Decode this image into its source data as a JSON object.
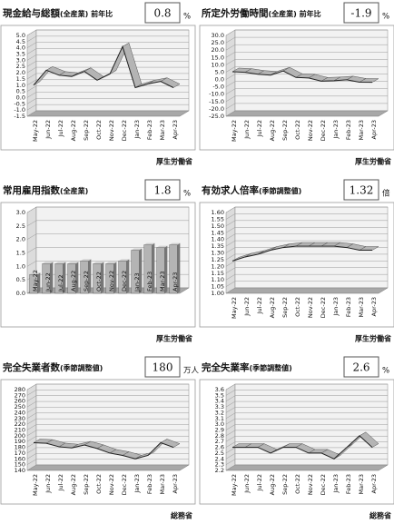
{
  "chart_data": [
    {
      "type": "line",
      "title": "現金給与総額",
      "subtitle": "(全産業) 前年比",
      "latest": 0.8,
      "unit": "%",
      "source": "厚生労働省",
      "color": "#b4b4b4",
      "categories": [
        "May-22",
        "Jun-22",
        "Jul-22",
        "Aug-22",
        "Sep-22",
        "Oct-22",
        "Nov-22",
        "Dec-22",
        "Jan-23",
        "Feb-23",
        "Mar-23",
        "Apr-23"
      ],
      "values": [
        1.0,
        2.2,
        1.8,
        1.7,
        2.1,
        1.4,
        1.9,
        4.1,
        0.8,
        1.1,
        1.3,
        0.8
      ],
      "ylim": [
        -1.5,
        5.0
      ],
      "yticks": [
        -1.5,
        {
          "value": -1,
          "label": "-1.0"
        },
        -0.5,
        {
          "value": 0,
          "label": "0.0"
        },
        0.5,
        {
          "value": 1,
          "label": "1.0"
        },
        1.5,
        {
          "value": 2,
          "label": "2.0"
        },
        2.5,
        {
          "value": 3,
          "label": "3.0"
        },
        3.5,
        {
          "value": 4,
          "label": "4.0"
        },
        4.5,
        {
          "value": 5,
          "label": "5.0"
        }
      ]
    },
    {
      "type": "line",
      "title": "所定外労働時間",
      "subtitle": "(全産業) 前年比",
      "latest": -1.9,
      "unit": "%",
      "source": "厚生労働省",
      "color": "#b4b4b4",
      "categories": [
        "May-22",
        "Jun-22",
        "Jul-22",
        "Aug-22",
        "Sep-22",
        "Oct-22",
        "Nov-22",
        "Dec-22",
        "Jan-23",
        "Feb-23",
        "Mar-23",
        "Apr-23"
      ],
      "values": [
        5.3,
        4.9,
        3.6,
        3.0,
        5.8,
        1.4,
        1.0,
        -1.1,
        -0.8,
        -0.2,
        -1.8,
        -1.9
      ],
      "ylim": [
        -25,
        30
      ],
      "yticks": [
        {
          "value": -25,
          "label": "-25.0"
        },
        {
          "value": -20,
          "label": "-20.0"
        },
        {
          "value": -15,
          "label": "-15.0"
        },
        {
          "value": -10,
          "label": "-10.0"
        },
        {
          "value": -5,
          "label": "-5.0"
        },
        {
          "value": 0,
          "label": "0.0"
        },
        {
          "value": 5,
          "label": "5.0"
        },
        {
          "value": 10,
          "label": "10.0"
        },
        {
          "value": 15,
          "label": "15.0"
        },
        {
          "value": 20,
          "label": "20.0"
        },
        {
          "value": 25,
          "label": "25.0"
        },
        {
          "value": 30,
          "label": "30.0"
        }
      ]
    },
    {
      "type": "bar",
      "title": "常用雇用指数",
      "subtitle": "(全産業)",
      "latest": 1.8,
      "unit": "%",
      "source": "厚生労働省",
      "color": "#b4b4b4",
      "categories": [
        "May-22",
        "Jun-22",
        "Jul-22",
        "Aug-22",
        "Sep-22",
        "Oct-22",
        "Nov-22",
        "Dec-22",
        "Jan-23",
        "Feb-23",
        "Mar-23",
        "Apr-23"
      ],
      "values": [
        0.7,
        1.1,
        1.1,
        1.1,
        1.2,
        1.1,
        1.1,
        1.2,
        1.6,
        1.8,
        1.7,
        1.8
      ],
      "ylim": [
        0,
        3.0
      ],
      "yticks": [
        {
          "value": 0,
          "label": "0.0"
        },
        0.5,
        {
          "value": 1,
          "label": "1.0"
        },
        1.5,
        {
          "value": 2,
          "label": "2.0"
        },
        2.5,
        {
          "value": 3,
          "label": "3.0"
        }
      ]
    },
    {
      "type": "line",
      "title": "有効求人倍率",
      "subtitle": "(季節調整値)",
      "latest": 1.32,
      "unit": "倍",
      "source": "厚生労働省",
      "color": "#b4b4b4",
      "categories": [
        "May-22",
        "Jun-22",
        "Jul-22",
        "Aug-22",
        "Sep-22",
        "Oct-22",
        "Nov-22",
        "Dec-22",
        "Jan-23",
        "Feb-23",
        "Mar-23",
        "Apr-23"
      ],
      "values": [
        1.24,
        1.27,
        1.29,
        1.32,
        1.34,
        1.35,
        1.35,
        1.35,
        1.35,
        1.34,
        1.32,
        1.32
      ],
      "ylim": [
        1.0,
        1.6
      ],
      "yticks": [
        {
          "value": 1,
          "label": "1.00"
        },
        1.05,
        {
          "value": 1.1,
          "label": "1.10"
        },
        1.15,
        {
          "value": 1.2,
          "label": "1.20"
        },
        1.25,
        {
          "value": 1.3,
          "label": "1.30"
        },
        1.35,
        {
          "value": 1.4,
          "label": "1.40"
        },
        1.45,
        {
          "value": 1.5,
          "label": "1.50"
        },
        1.55,
        {
          "value": 1.6,
          "label": "1.60"
        }
      ]
    },
    {
      "type": "line",
      "title": "完全失業者数",
      "subtitle": "(季節調整値)",
      "latest": 180,
      "unit": "万人",
      "source": "総務省",
      "color": "#b4b4b4",
      "categories": [
        "May-22",
        "Jun-22",
        "Jul-22",
        "Aug-22",
        "Sep-22",
        "Oct-22",
        "Nov-22",
        "Dec-22",
        "Jan-23",
        "Feb-23",
        "Mar-23",
        "Apr-23"
      ],
      "values": [
        188,
        187,
        181,
        179,
        184,
        178,
        170,
        166,
        160,
        166,
        188,
        180
      ],
      "ylim": [
        140,
        280
      ],
      "yticks": [
        140,
        150,
        160,
        170,
        180,
        190,
        200,
        210,
        220,
        230,
        240,
        250,
        260,
        270,
        280
      ]
    },
    {
      "type": "line",
      "title": "完全失業率",
      "subtitle": "(季節調整値)",
      "latest": 2.6,
      "unit": "%",
      "source": "総務省",
      "color": "#b4b4b4",
      "categories": [
        "May-22",
        "Jun-22",
        "Jul-22",
        "Aug-22",
        "Sep-22",
        "Oct-22",
        "Nov-22",
        "Dec-22",
        "Jan-23",
        "Feb-23",
        "Mar-23",
        "Apr-23"
      ],
      "values": [
        2.6,
        2.6,
        2.6,
        2.5,
        2.6,
        2.6,
        2.5,
        2.5,
        2.4,
        2.6,
        2.8,
        2.6
      ],
      "ylim": [
        2.2,
        3.6
      ],
      "yticks": [
        2.2,
        2.3,
        2.4,
        2.5,
        2.6,
        2.7,
        2.8,
        2.9,
        {
          "value": 3,
          "label": "3.0"
        },
        3.1,
        3.2,
        3.3,
        3.4,
        3.5,
        3.6
      ]
    }
  ]
}
